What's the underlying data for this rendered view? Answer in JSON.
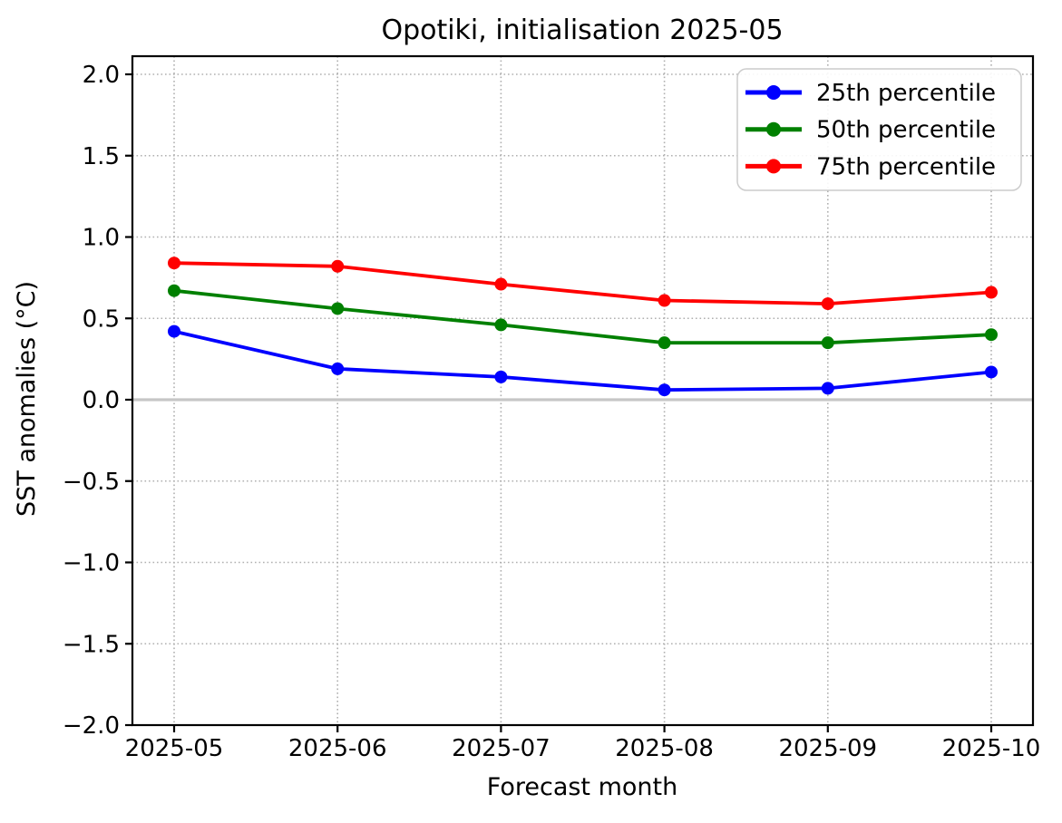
{
  "chart_data": {
    "type": "line",
    "title": "Opotiki, initialisation 2025-05",
    "xlabel": "Forecast month",
    "ylabel": "SST anomalies (°C)",
    "categories": [
      "2025-05",
      "2025-06",
      "2025-07",
      "2025-08",
      "2025-09",
      "2025-10"
    ],
    "series": [
      {
        "name": "25th percentile",
        "color": "#0000ff",
        "values": [
          0.42,
          0.19,
          0.14,
          0.06,
          0.07,
          0.17
        ]
      },
      {
        "name": "50th percentile",
        "color": "#008000",
        "values": [
          0.67,
          0.56,
          0.46,
          0.35,
          0.35,
          0.4
        ]
      },
      {
        "name": "75th percentile",
        "color": "#ff0000",
        "values": [
          0.84,
          0.82,
          0.71,
          0.61,
          0.59,
          0.66
        ]
      }
    ],
    "ylim": [
      -2.0,
      2.0
    ],
    "yticks": [
      2.0,
      1.5,
      1.0,
      0.5,
      0.0,
      -0.5,
      -1.0,
      -1.5,
      -2.0
    ],
    "ytick_labels": [
      "2.0",
      "1.5",
      "1.0",
      "0.5",
      "0.0",
      "−0.5",
      "−1.0",
      "−1.5",
      "−2.0"
    ],
    "grid": true,
    "grid_style": "dotted",
    "legend_position": "upper right",
    "zero_line": {
      "y": 0.0,
      "color": "#c6c6c6"
    },
    "style_colors": {
      "grid": "#b0b0b0",
      "frame": "#000000",
      "legend_border": "#cccccc",
      "legend_background": "#ffffff"
    }
  }
}
